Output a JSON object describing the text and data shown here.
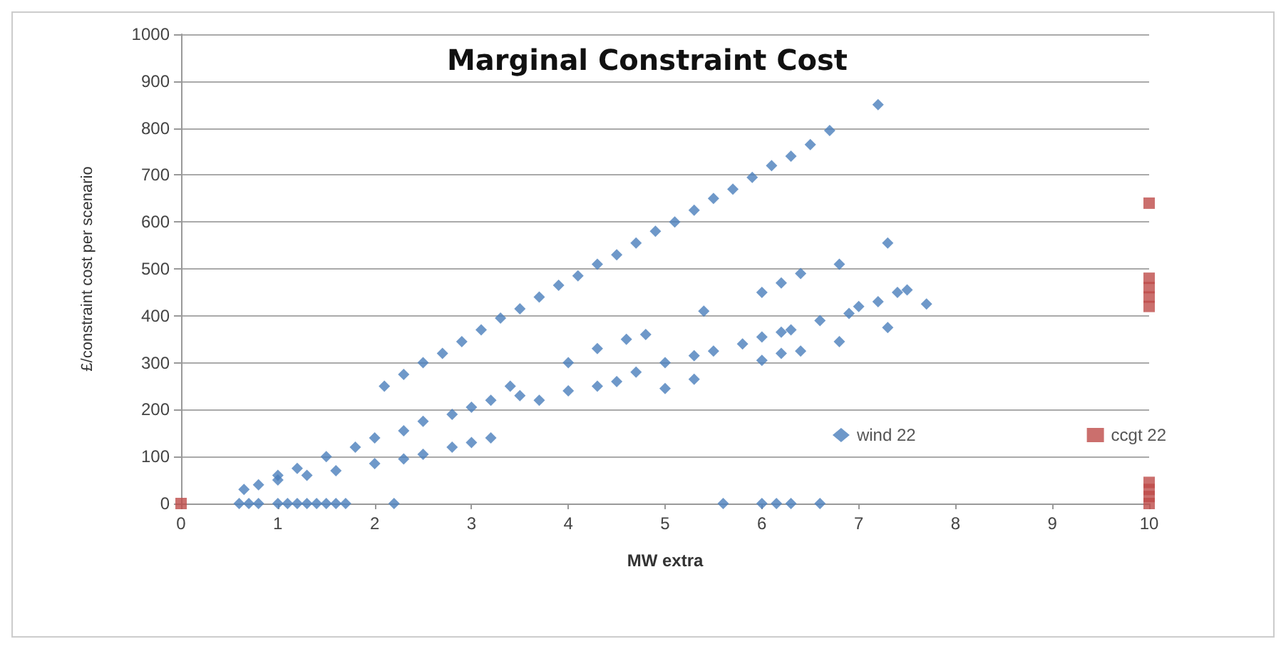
{
  "chart_data": {
    "type": "scatter",
    "title": "Marginal Constraint Cost",
    "xlabel": "MW extra",
    "ylabel": "£/constraint cost per scenario",
    "xlim": [
      0,
      10
    ],
    "xticks": [
      0,
      1,
      2,
      3,
      4,
      5,
      6,
      7,
      8,
      9,
      10
    ],
    "ylim": [
      0,
      1000
    ],
    "yticks": [
      0,
      100,
      200,
      300,
      400,
      500,
      600,
      700,
      800,
      900,
      1000
    ],
    "grid": "y",
    "legend": "bottom right",
    "series": [
      {
        "name": "wind 22",
        "color": "#4a7ebb",
        "marker": "diamond",
        "x": [
          2.1,
          2.3,
          2.5,
          2.7,
          2.9,
          3.1,
          3.3,
          3.5,
          3.7,
          3.9,
          4.1,
          4.3,
          4.5,
          4.7,
          4.9,
          5.1,
          5.3,
          5.5,
          5.7,
          5.9,
          6.1,
          6.3,
          6.5,
          6.7,
          7.2,
          0.65,
          0.8,
          1,
          1.2,
          1.5,
          1.8,
          2,
          2.3,
          2.5,
          2.8,
          3,
          3.2,
          3.4,
          3.5,
          3.7,
          4,
          4.3,
          4.5,
          4.7,
          5,
          5.3,
          5.5,
          5.8,
          6,
          6.2,
          6.3,
          6.6,
          6.9,
          7,
          7.2,
          7.4,
          7.7,
          4,
          4.3,
          4.6,
          4.8,
          5.4,
          6,
          6.2,
          6.4,
          6.8,
          7.3,
          7.5,
          1,
          1.3,
          1.6,
          2,
          2.3,
          2.5,
          2.8,
          3,
          3.2,
          5,
          5.3,
          6,
          6.2,
          6.4,
          6.8,
          7.3,
          0.6,
          0.7,
          0.8,
          1,
          1.1,
          1.2,
          1.3,
          1.4,
          1.5,
          1.6,
          1.7,
          2.2,
          5.6,
          6,
          6.15,
          6.3,
          6.6
        ],
        "values": [
          250,
          275,
          300,
          320,
          345,
          370,
          395,
          415,
          440,
          465,
          485,
          510,
          530,
          555,
          580,
          600,
          625,
          650,
          670,
          695,
          720,
          740,
          765,
          795,
          850,
          30,
          40,
          60,
          75,
          100,
          120,
          140,
          155,
          175,
          190,
          205,
          220,
          250,
          230,
          220,
          240,
          250,
          260,
          280,
          300,
          315,
          325,
          340,
          355,
          365,
          370,
          390,
          405,
          420,
          430,
          450,
          425,
          300,
          330,
          350,
          360,
          410,
          450,
          470,
          490,
          510,
          555,
          455,
          50,
          60,
          70,
          85,
          95,
          105,
          120,
          130,
          140,
          245,
          265,
          305,
          320,
          325,
          345,
          375,
          0,
          0,
          0,
          0,
          0,
          0,
          0,
          0,
          0,
          0,
          0,
          0,
          0,
          0,
          0,
          0,
          0
        ]
      },
      {
        "name": "ccgt 22",
        "color": "#be4b48",
        "marker": "square",
        "x": [
          0,
          10,
          10,
          10,
          10,
          10,
          10,
          10,
          10,
          10
        ],
        "values": [
          0,
          0,
          15,
          30,
          45,
          420,
          440,
          460,
          480,
          640
        ]
      }
    ]
  }
}
